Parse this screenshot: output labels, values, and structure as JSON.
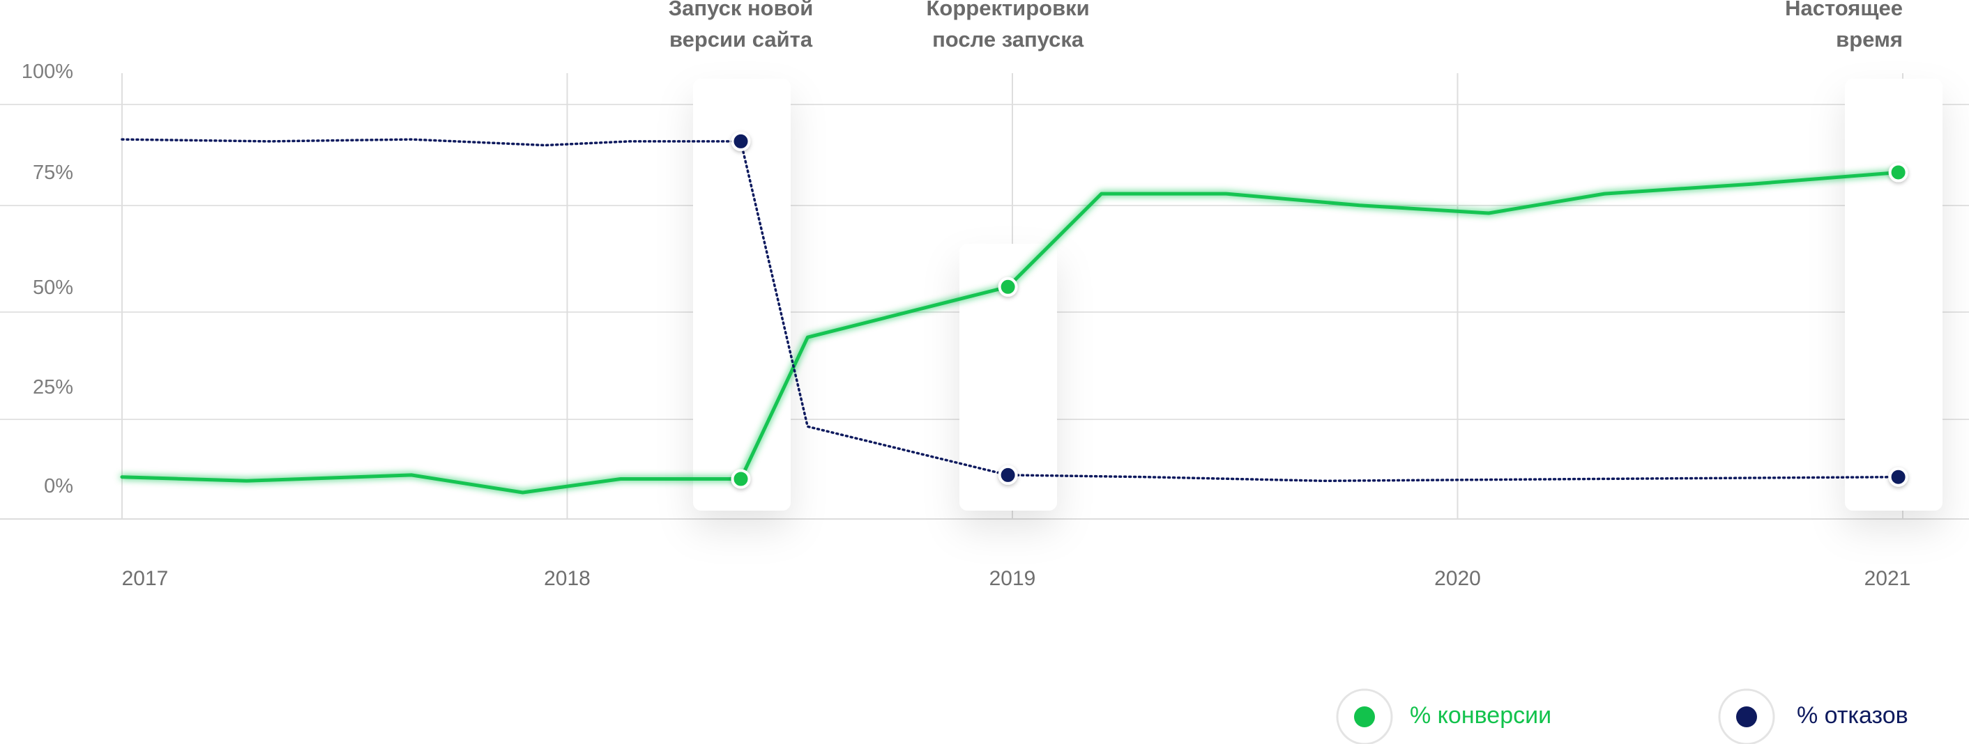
{
  "chart_data": {
    "type": "line",
    "x_ticks": [
      "2017",
      "2018",
      "2019",
      "2020",
      "2021"
    ],
    "y_ticks": [
      "0%",
      "25%",
      "50%",
      "75%",
      "100%"
    ],
    "xlim": [
      2017,
      2021
    ],
    "ylim": [
      0,
      100
    ],
    "grid": true,
    "legend_position": "bottom-right",
    "series": [
      {
        "name": "% конверсии",
        "color": "#12c24c",
        "style": "solid",
        "points": [
          {
            "x": 2017.0,
            "y": 4
          },
          {
            "x": 2017.28,
            "y": 3
          },
          {
            "x": 2017.65,
            "y": 4.5
          },
          {
            "x": 2017.9,
            "y": 0
          },
          {
            "x": 2018.12,
            "y": 3.5
          },
          {
            "x": 2018.39,
            "y": 3.5
          },
          {
            "x": 2018.54,
            "y": 40
          },
          {
            "x": 2018.99,
            "y": 53
          },
          {
            "x": 2019.2,
            "y": 77
          },
          {
            "x": 2019.48,
            "y": 77
          },
          {
            "x": 2019.78,
            "y": 74
          },
          {
            "x": 2020.07,
            "y": 72
          },
          {
            "x": 2020.33,
            "y": 77
          },
          {
            "x": 2020.66,
            "y": 79.5
          },
          {
            "x": 2020.99,
            "y": 82.5
          }
        ]
      },
      {
        "name": "% отказов",
        "color": "#0e1a5e",
        "style": "dotted",
        "points": [
          {
            "x": 2017.0,
            "y": 91
          },
          {
            "x": 2017.33,
            "y": 90.5
          },
          {
            "x": 2017.65,
            "y": 91
          },
          {
            "x": 2017.95,
            "y": 89.5
          },
          {
            "x": 2018.14,
            "y": 90.5
          },
          {
            "x": 2018.39,
            "y": 90.5
          },
          {
            "x": 2018.54,
            "y": 17
          },
          {
            "x": 2018.99,
            "y": 4.5
          },
          {
            "x": 2019.3,
            "y": 4
          },
          {
            "x": 2019.7,
            "y": 3
          },
          {
            "x": 2020.3,
            "y": 3.5
          },
          {
            "x": 2020.99,
            "y": 4
          }
        ]
      }
    ],
    "highlights": [
      {
        "x": 2018.39,
        "label": [
          "Запуск новой",
          "версии сайта"
        ]
      },
      {
        "x": 2018.99,
        "label": [
          "Корректировки",
          "после запуска"
        ]
      },
      {
        "x": 2020.99,
        "label": [
          "Настоящее",
          "время"
        ]
      }
    ]
  }
}
